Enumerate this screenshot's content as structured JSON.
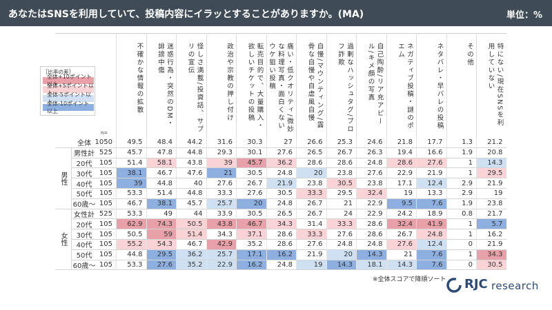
{
  "header": {
    "title": "あなたはSNSを利用していて、投稿内容にイラッとすることがありますか。(MA)",
    "unit": "単位：%"
  },
  "legend": {
    "title": "［比率の差］",
    "items": [
      {
        "label": "全体+10ポイント以上",
        "color": "#e8a1a9"
      },
      {
        "label": "全体+5ポイント以上",
        "color": "#f9d3d6"
      },
      {
        "label": "全体-5ポイント以上",
        "color": "#cfe0f3"
      },
      {
        "label": "全体-10ポイント以上",
        "color": "#8eb0e0"
      }
    ]
  },
  "table": {
    "n_label": "n=",
    "columns": [
      "不確かな情報の拡散",
      "迷惑行為・突然のDM・誹謗中傷",
      "怪しさ満載/投資話、サプリの宣伝",
      "政治や宗教の押し付け",
      "転売目的で、大量購入・欲しいチケットの投稿",
      "痛い・低クオリティ/微妙な料理写真・面白くないウケ狙い投稿",
      "自慢/マウンティング/露骨な自慢や自虐風自慢",
      "過剰なハッシュタグ/プロフ詐欺",
      "自己陶酔/リア充アピール/キメ顔の写真",
      "ネガティブ投稿・謎のポエム",
      "ネタバレ・早バレの投稿",
      "その他",
      "特にない/現在SNSを利用していない"
    ],
    "total": {
      "label": "全体",
      "n": 1050,
      "values": [
        49.5,
        48.4,
        44.2,
        31.6,
        30.3,
        27.0,
        26.6,
        25.3,
        24.6,
        21.8,
        17.7,
        1.3,
        21.2
      ],
      "levels": [
        null,
        null,
        null,
        null,
        null,
        null,
        null,
        null,
        null,
        null,
        null,
        null,
        null
      ]
    },
    "groups": [
      {
        "label": "男性",
        "rows": [
          {
            "label": "男性計",
            "n": 525,
            "values": [
              45.7,
              47.8,
              44.8,
              29.3,
              30.1,
              27.6,
              26.5,
              26.7,
              26.3,
              19.4,
              16.6,
              1.9,
              20.8
            ],
            "levels": [
              null,
              null,
              null,
              null,
              null,
              null,
              null,
              null,
              null,
              null,
              null,
              null,
              null
            ]
          },
          {
            "label": "20代",
            "n": 105,
            "values": [
              51.4,
              58.1,
              43.8,
              39.0,
              45.7,
              36.2,
              28.6,
              28.6,
              24.8,
              28.6,
              27.6,
              1.0,
              14.3
            ],
            "levels": [
              null,
              1,
              null,
              1,
              0,
              1,
              null,
              null,
              null,
              1,
              1,
              null,
              2
            ]
          },
          {
            "label": "30代",
            "n": 105,
            "values": [
              38.1,
              46.7,
              47.6,
              21.0,
              30.5,
              24.8,
              20.0,
              23.8,
              27.6,
              22.9,
              21.9,
              1.0,
              29.5
            ],
            "levels": [
              3,
              null,
              null,
              3,
              null,
              null,
              2,
              null,
              null,
              null,
              null,
              null,
              1
            ]
          },
          {
            "label": "40代",
            "n": 105,
            "values": [
              39.0,
              44.8,
              40.0,
              27.6,
              26.7,
              21.9,
              23.8,
              30.5,
              23.8,
              17.1,
              12.4,
              2.9,
              21.9
            ],
            "levels": [
              3,
              null,
              null,
              null,
              null,
              2,
              null,
              1,
              null,
              null,
              2,
              null,
              null
            ]
          },
          {
            "label": "50代",
            "n": 105,
            "values": [
              53.3,
              51.4,
              44.8,
              33.3,
              27.6,
              30.5,
              33.3,
              29.5,
              32.4,
              19.0,
              13.3,
              2.9,
              19.0
            ],
            "levels": [
              null,
              null,
              null,
              null,
              null,
              null,
              1,
              null,
              1,
              null,
              null,
              null,
              null
            ]
          },
          {
            "label": "60歳～",
            "n": 105,
            "values": [
              46.7,
              38.1,
              45.7,
              25.7,
              20.0,
              24.8,
              26.7,
              21.0,
              22.9,
              9.5,
              7.6,
              1.9,
              23.8
            ],
            "levels": [
              null,
              3,
              null,
              2,
              3,
              null,
              null,
              null,
              null,
              3,
              3,
              null,
              null
            ]
          }
        ]
      },
      {
        "label": "女性",
        "rows": [
          {
            "label": "女性計",
            "n": 525,
            "values": [
              53.3,
              49.0,
              44.0,
              33.9,
              30.5,
              26.5,
              26.7,
              24.0,
              22.9,
              24.2,
              18.9,
              0.8,
              21.7
            ],
            "levels": [
              null,
              null,
              null,
              null,
              null,
              null,
              null,
              null,
              null,
              null,
              null,
              null,
              null
            ]
          },
          {
            "label": "20代",
            "n": 105,
            "values": [
              62.9,
              74.3,
              50.5,
              43.8,
              46.7,
              34.3,
              31.4,
              33.3,
              28.6,
              32.4,
              41.9,
              1.0,
              5.7
            ],
            "levels": [
              0,
              0,
              1,
              0,
              0,
              1,
              null,
              1,
              null,
              0,
              0,
              null,
              3
            ]
          },
          {
            "label": "30代",
            "n": 105,
            "values": [
              50.5,
              59.0,
              51.4,
              34.3,
              37.1,
              28.6,
              33.3,
              27.6,
              28.6,
              26.7,
              24.8,
              1.0,
              16.2
            ],
            "levels": [
              null,
              0,
              1,
              null,
              1,
              null,
              1,
              null,
              null,
              null,
              1,
              null,
              null
            ]
          },
          {
            "label": "40代",
            "n": 105,
            "values": [
              55.2,
              54.3,
              46.7,
              42.9,
              35.2,
              28.6,
              27.6,
              24.8,
              24.8,
              27.6,
              12.4,
              0.0,
              21.9
            ],
            "levels": [
              1,
              1,
              null,
              0,
              null,
              null,
              null,
              null,
              null,
              1,
              2,
              null,
              null
            ]
          },
          {
            "label": "50代",
            "n": 105,
            "values": [
              44.8,
              29.5,
              36.2,
              25.7,
              17.1,
              16.2,
              21.9,
              20.0,
              14.3,
              21.0,
              7.6,
              1.0,
              34.3
            ],
            "levels": [
              null,
              3,
              2,
              2,
              3,
              3,
              null,
              2,
              3,
              null,
              3,
              null,
              0
            ]
          },
          {
            "label": "60歳～",
            "n": 105,
            "values": [
              53.3,
              27.6,
              35.2,
              22.9,
              16.2,
              24.8,
              19.0,
              14.3,
              18.1,
              14.3,
              7.6,
              0.0,
              30.5
            ],
            "levels": [
              null,
              3,
              2,
              2,
              3,
              null,
              2,
              3,
              2,
              2,
              3,
              null,
              1
            ]
          }
        ]
      }
    ]
  },
  "note": "※全体スコアで降順ソート",
  "logo": {
    "mark": "RJC",
    "text": "research"
  }
}
